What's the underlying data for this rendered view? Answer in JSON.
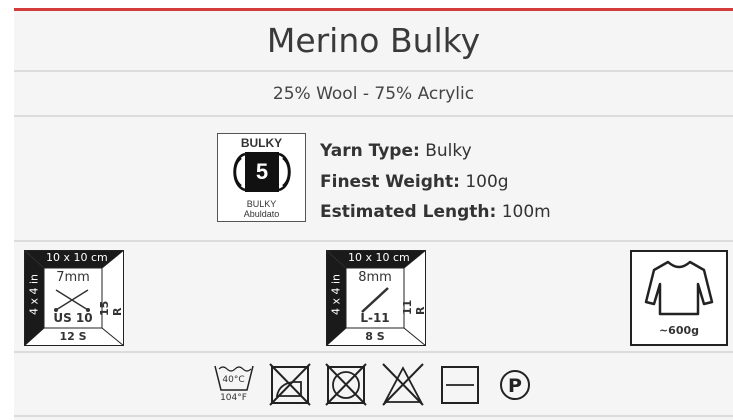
{
  "title": "Merino Bulky",
  "composition": "25% Wool - 75% Acrylic",
  "weight_badge": {
    "top": "BULKY",
    "number": "5",
    "label1": "BULKY",
    "label2": "Abuldato"
  },
  "info": [
    {
      "label": "Yarn Type:",
      "value": "Bulky"
    },
    {
      "label": "Finest Weight:",
      "value": "100g"
    },
    {
      "label": "Estimated Length:",
      "value": "100m"
    }
  ],
  "gauges": [
    {
      "top": "10 x 10 cm",
      "side": "4 x 4 in",
      "size": "7mm",
      "tool": "US 10",
      "rows": "15 R",
      "stitches": "12 S",
      "type": "knitting-needles"
    },
    {
      "top": "10 x 10 cm",
      "side": "4 x 4 in",
      "size": "8mm",
      "tool": "L-11",
      "rows": "11 R",
      "stitches": "8 S",
      "type": "crochet-hook"
    }
  ],
  "sweater": {
    "weight": "~600g"
  },
  "care": {
    "wash_c": "40°C",
    "wash_f": "104°F"
  },
  "colors": {
    "accent": "#d23c3c",
    "background": "#f5f5f5"
  }
}
